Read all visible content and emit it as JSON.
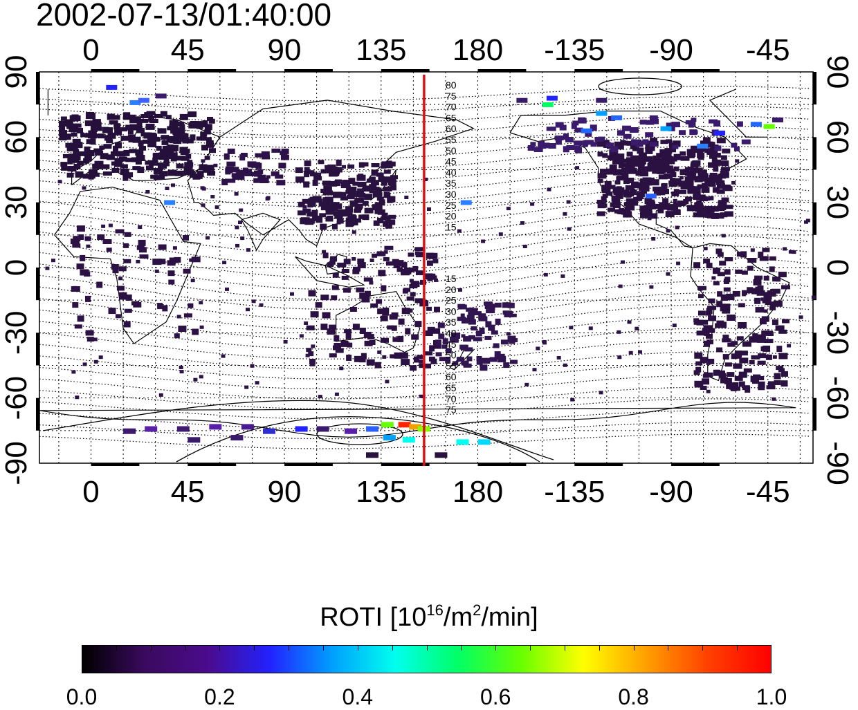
{
  "title": "2002-07-13/01:40:00",
  "map": {
    "lon_ticks": [
      "0",
      "45",
      "90",
      "135",
      "180",
      "-135",
      "-90",
      "-45"
    ],
    "lat_ticks": [
      "90",
      "60",
      "30",
      "0",
      "-30",
      "-60",
      "-90"
    ],
    "contour_labels_north": [
      "80",
      "75",
      "70",
      "65",
      "60",
      "55",
      "50",
      "45",
      "40",
      "35",
      "30",
      "25",
      "20",
      "15"
    ],
    "contour_labels_south": [
      "15",
      "20",
      "25",
      "30",
      "35",
      "40",
      "45",
      "50",
      "55",
      "60",
      "65",
      "70",
      "75"
    ],
    "marker_line_longitude": 155,
    "marker_line_color": "#e01010"
  },
  "colorbar": {
    "title_prefix": "ROTI  [10",
    "title_sup1": "16",
    "title_mid": "/m",
    "title_sup2": "2",
    "title_suffix": "/min]",
    "ticks": [
      "0.0",
      "0.2",
      "0.4",
      "0.6",
      "0.8",
      "1.0"
    ],
    "colors": [
      "#000000",
      "#3a0a5e",
      "#4b0b8c",
      "#2222ff",
      "#00a0ff",
      "#00ffee",
      "#00ff66",
      "#66ff00",
      "#ffff00",
      "#ffa000",
      "#ff4000",
      "#ff0000"
    ]
  }
}
